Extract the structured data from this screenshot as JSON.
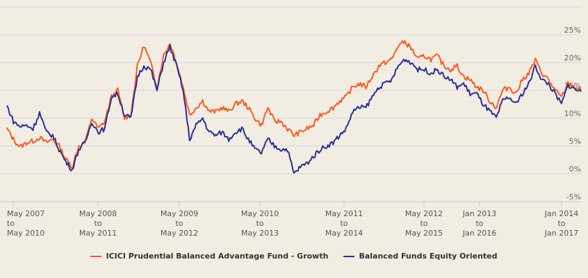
{
  "chart_data": {
    "type": "line",
    "title": "",
    "xlabel": "",
    "ylabel": "",
    "ylim": [
      -5,
      30
    ],
    "yticks": [
      -5,
      0,
      5,
      10,
      15,
      20,
      25
    ],
    "ytick_labels": [
      "-5%",
      "0%",
      "5%",
      "10%",
      "15%",
      "20%",
      "25%"
    ],
    "grid": true,
    "legend_position": "bottom",
    "x_tick_labels": [
      [
        "May 2007",
        "to",
        "May 2010"
      ],
      [
        "May 2008",
        "to",
        "May 2011"
      ],
      [
        "May 2009",
        "to",
        "May 2012"
      ],
      [
        "May 2010",
        "to",
        "May 2013"
      ],
      [
        "May 2011",
        "to",
        "May 2014"
      ],
      [
        "May 2012",
        "to",
        "May 2015"
      ],
      [
        "Jan 2013",
        "to",
        "Jan 2016"
      ],
      [
        "Jan 2014",
        "to",
        "Jan 2017"
      ]
    ],
    "series": [
      {
        "name": "ICICI Prudential Balanced Advantage Fund - Growth",
        "color": "#ff5a1f",
        "values": [
          8.1,
          6.2,
          4.8,
          5.6,
          5.9,
          6.5,
          5.6,
          6.2,
          5.0,
          2.7,
          1.2,
          5.0,
          5.6,
          10.0,
          8.1,
          9.4,
          13.8,
          15.0,
          10.0,
          10.6,
          19.4,
          23.1,
          20.0,
          15.6,
          21.2,
          23.5,
          20.0,
          15.6,
          10.6,
          11.9,
          13.1,
          11.2,
          11.2,
          11.9,
          11.2,
          12.5,
          13.1,
          11.9,
          10.0,
          8.7,
          11.9,
          9.4,
          9.4,
          8.1,
          6.9,
          7.5,
          8.1,
          8.7,
          10.6,
          11.2,
          11.9,
          13.1,
          13.8,
          15.6,
          16.2,
          15.6,
          17.5,
          19.4,
          20.0,
          20.6,
          23.1,
          23.75,
          22.5,
          20.6,
          21.2,
          20.6,
          21.2,
          19.4,
          18.75,
          19.4,
          17.5,
          16.9,
          15.6,
          15.0,
          13.1,
          11.9,
          15.0,
          15.6,
          14.4,
          16.9,
          18.1,
          20.4,
          18.1,
          16.9,
          15.0,
          13.75,
          16.2,
          15.6,
          15.0
        ]
      },
      {
        "name": "Balanced Funds Equity Oriented",
        "color": "#2b2f8f",
        "values": [
          12.2,
          9.4,
          8.5,
          8.7,
          8.1,
          11.0,
          7.5,
          6.9,
          4.4,
          2.2,
          0.7,
          4.4,
          5.6,
          9.4,
          7.5,
          8.1,
          13.8,
          14.4,
          10.6,
          10.0,
          17.5,
          19.4,
          18.8,
          15.0,
          20.0,
          22.8,
          19.4,
          15.0,
          6.2,
          8.7,
          10.0,
          7.5,
          6.9,
          7.5,
          6.2,
          7.5,
          8.1,
          6.2,
          4.4,
          3.75,
          6.2,
          5.0,
          4.4,
          4.4,
          0.0,
          1.25,
          1.9,
          3.1,
          4.4,
          5.0,
          5.6,
          6.9,
          8.1,
          11.2,
          11.9,
          11.9,
          13.8,
          15.6,
          16.2,
          16.9,
          19.4,
          20.6,
          20.0,
          18.75,
          18.75,
          18.1,
          18.75,
          17.5,
          16.9,
          15.6,
          16.2,
          14.4,
          14.4,
          12.5,
          11.2,
          10.0,
          13.1,
          13.75,
          12.5,
          14.4,
          16.2,
          19.4,
          16.9,
          16.2,
          14.4,
          12.5,
          16.0,
          15.25,
          14.75
        ]
      }
    ]
  }
}
